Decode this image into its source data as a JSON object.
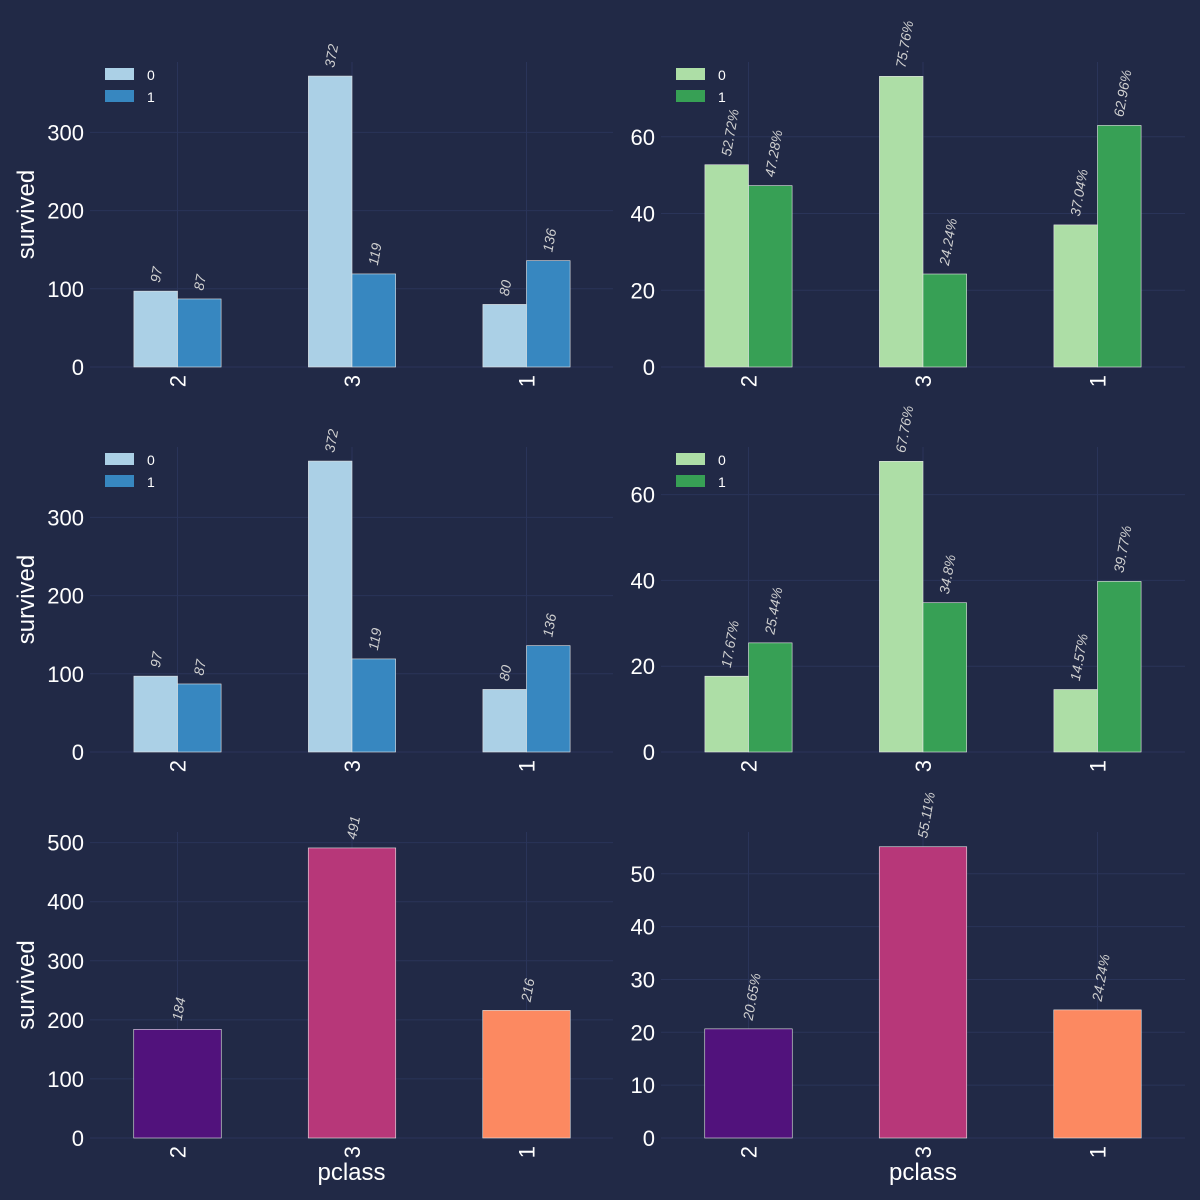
{
  "theme": {
    "background": "#212946",
    "grid": "#2A3459",
    "text": "#FFFFFF",
    "bar_label": "#D0D0D0"
  },
  "chart_data": [
    {
      "type": "bar",
      "categories": [
        "2",
        "3",
        "1"
      ],
      "series": [
        {
          "name": "0",
          "values": [
            97,
            372,
            80
          ],
          "labels": [
            "97",
            "372",
            "80"
          ],
          "color": "#ABD0E6"
        },
        {
          "name": "1",
          "values": [
            87,
            119,
            136
          ],
          "labels": [
            "87",
            "119",
            "136"
          ],
          "color": "#3787C0"
        }
      ],
      "ylabel": "survived",
      "xlabel": "",
      "ylim": [
        0,
        390
      ],
      "yticks": [
        0,
        100,
        200,
        300
      ],
      "legend": "top-left",
      "grid": true
    },
    {
      "type": "bar",
      "categories": [
        "2",
        "3",
        "1"
      ],
      "series": [
        {
          "name": "0",
          "values": [
            52.72,
            75.76,
            37.04
          ],
          "labels": [
            "52.72%",
            "75.76%",
            "37.04%"
          ],
          "color": "#ADDEA6"
        },
        {
          "name": "1",
          "values": [
            47.28,
            24.24,
            62.96
          ],
          "labels": [
            "47.28%",
            "24.24%",
            "62.96%"
          ],
          "color": "#37A055"
        }
      ],
      "ylabel": "",
      "xlabel": "",
      "ylim": [
        0,
        79.5
      ],
      "yticks": [
        0,
        20,
        40,
        60
      ],
      "legend": "top-left",
      "grid": true
    },
    {
      "type": "bar",
      "categories": [
        "2",
        "3",
        "1"
      ],
      "series": [
        {
          "name": "0",
          "values": [
            97,
            372,
            80
          ],
          "labels": [
            "97",
            "372",
            "80"
          ],
          "color": "#ABD0E6"
        },
        {
          "name": "1",
          "values": [
            87,
            119,
            136
          ],
          "labels": [
            "87",
            "119",
            "136"
          ],
          "color": "#3787C0"
        }
      ],
      "ylabel": "survived",
      "xlabel": "",
      "ylim": [
        0,
        390
      ],
      "yticks": [
        0,
        100,
        200,
        300
      ],
      "legend": "top-left",
      "grid": true
    },
    {
      "type": "bar",
      "categories": [
        "2",
        "3",
        "1"
      ],
      "series": [
        {
          "name": "0",
          "values": [
            17.67,
            67.76,
            14.57
          ],
          "labels": [
            "17.67%",
            "67.76%",
            "14.57%"
          ],
          "color": "#ADDEA6"
        },
        {
          "name": "1",
          "values": [
            25.44,
            34.8,
            39.77
          ],
          "labels": [
            "25.44%",
            "34.8%",
            "39.77%"
          ],
          "color": "#37A055"
        }
      ],
      "ylabel": "",
      "xlabel": "",
      "ylim": [
        0,
        71.1
      ],
      "yticks": [
        0,
        20,
        40,
        60
      ],
      "legend": "top-left",
      "grid": true
    },
    {
      "type": "bar",
      "categories": [
        "2",
        "3",
        "1"
      ],
      "series": [
        {
          "name": "",
          "values": [
            184,
            491,
            216
          ],
          "labels": [
            "184",
            "491",
            "216"
          ],
          "colors": [
            "#51127C",
            "#B73779",
            "#FC8961"
          ]
        }
      ],
      "ylabel": "survived",
      "xlabel": "pclass",
      "ylim": [
        0,
        518
      ],
      "yticks": [
        0,
        100,
        200,
        300,
        400,
        500
      ],
      "legend": "none",
      "grid": true
    },
    {
      "type": "bar",
      "categories": [
        "2",
        "3",
        "1"
      ],
      "series": [
        {
          "name": "",
          "values": [
            20.65,
            55.11,
            24.24
          ],
          "labels": [
            "20.65%",
            "55.11%",
            "24.24%"
          ],
          "colors": [
            "#51127C",
            "#B73779",
            "#FC8961"
          ]
        }
      ],
      "ylabel": "",
      "xlabel": "pclass",
      "ylim": [
        0,
        57.9
      ],
      "yticks": [
        0,
        10,
        20,
        30,
        40,
        50
      ],
      "legend": "none",
      "grid": true
    }
  ]
}
